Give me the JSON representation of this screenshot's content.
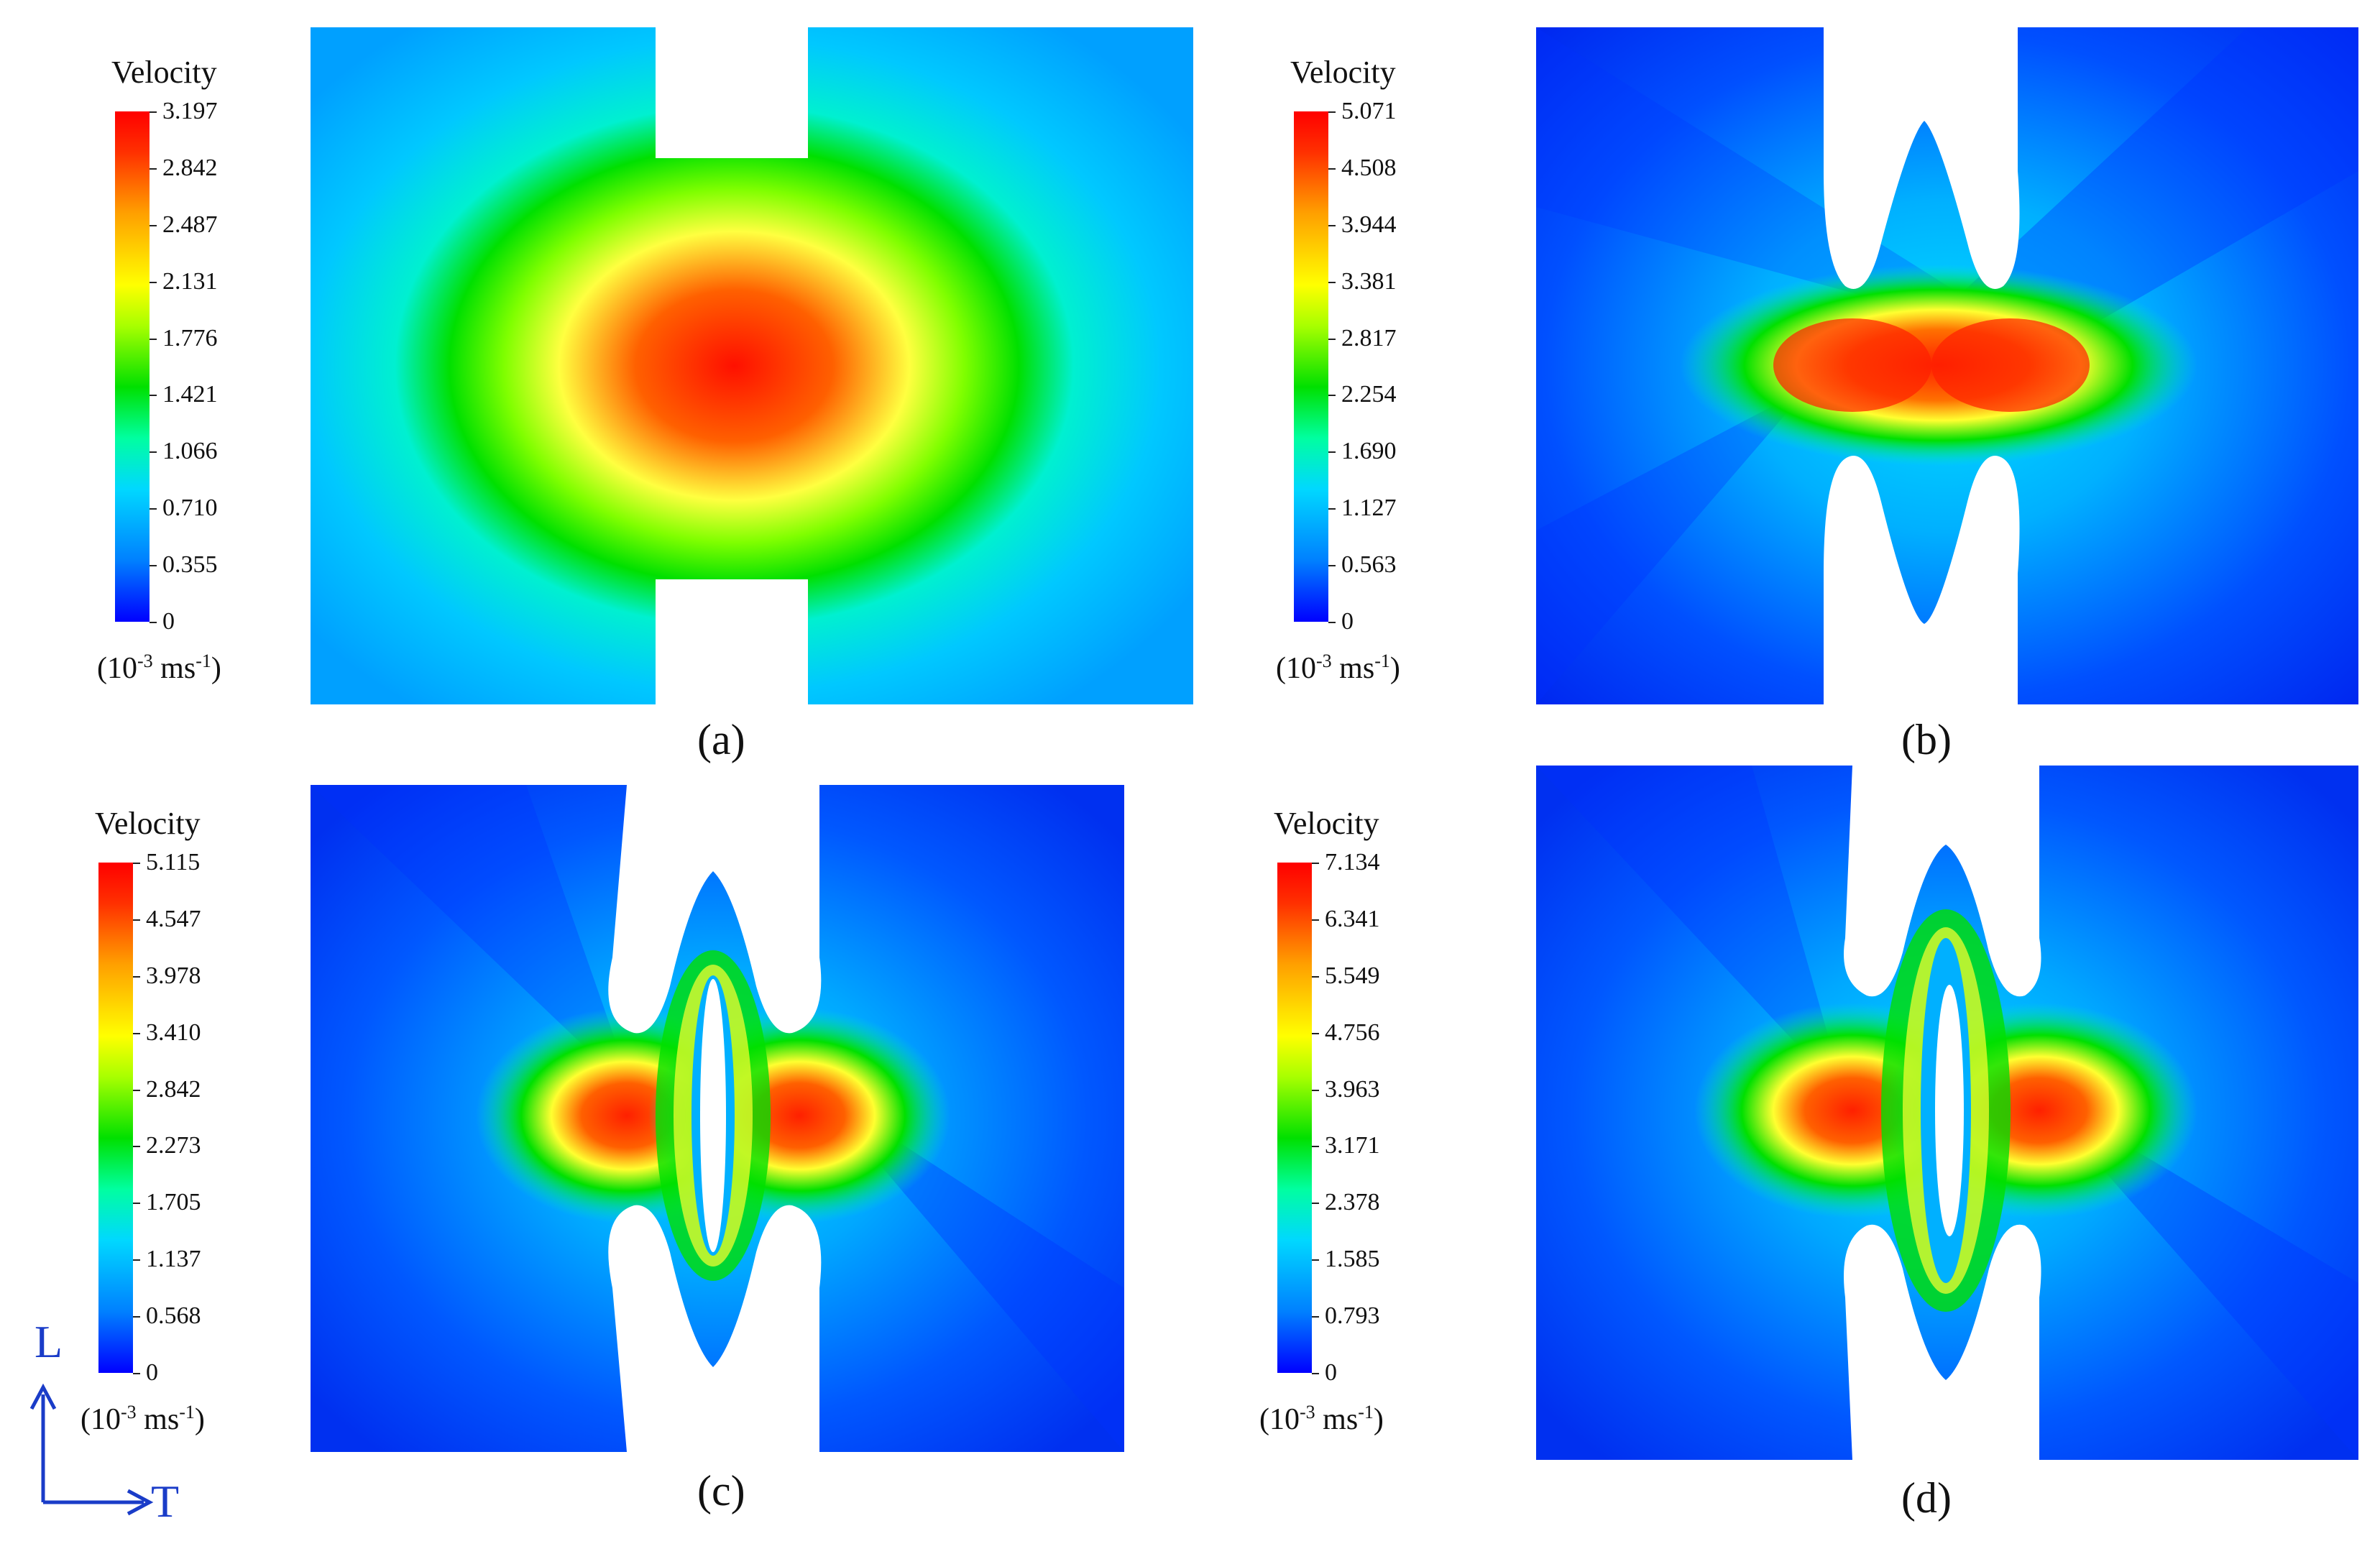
{
  "panels": [
    {
      "caption": "(a)",
      "legend": {
        "title": "Velocity",
        "unit_base": "(10",
        "unit_exp": "-3",
        "unit_mid": " ms",
        "unit_exp2": "-1",
        "unit_end": ")",
        "ticks": [
          "3.197",
          "2.842",
          "2.487",
          "2.131",
          "1.776",
          "1.421",
          "1.066",
          "0.710",
          "0.355",
          "0"
        ]
      }
    },
    {
      "caption": "(b)",
      "legend": {
        "title": "Velocity",
        "unit_base": "(10",
        "unit_exp": "-3",
        "unit_mid": " ms",
        "unit_exp2": "-1",
        "unit_end": ")",
        "ticks": [
          "5.071",
          "4.508",
          "3.944",
          "3.381",
          "2.817",
          "2.254",
          "1.690",
          "1.127",
          "0.563",
          "0"
        ]
      }
    },
    {
      "caption": "(c)",
      "legend": {
        "title": "Velocity",
        "unit_base": "(10",
        "unit_exp": "-3",
        "unit_mid": " ms",
        "unit_exp2": "-1",
        "unit_end": ")",
        "ticks": [
          "5.115",
          "4.547",
          "3.978",
          "3.410",
          "2.842",
          "2.273",
          "1.705",
          "1.137",
          "0.568",
          "0"
        ]
      }
    },
    {
      "caption": "(d)",
      "legend": {
        "title": "Velocity",
        "unit_base": "(10",
        "unit_exp": "-3",
        "unit_mid": " ms",
        "unit_exp2": "-1",
        "unit_end": ")",
        "ticks": [
          "7.134",
          "6.341",
          "5.549",
          "4.756",
          "3.963",
          "3.171",
          "2.378",
          "1.585",
          "0.793",
          "0"
        ]
      }
    }
  ],
  "axis_indicator": {
    "vertical": "L",
    "horizontal": "T"
  },
  "colors": {
    "blue": "#0000ff",
    "cyan": "#00e8ff",
    "green": "#00e000",
    "yellow": "#ffff00",
    "red": "#ff0000",
    "arrow": "#1a3cc8"
  }
}
